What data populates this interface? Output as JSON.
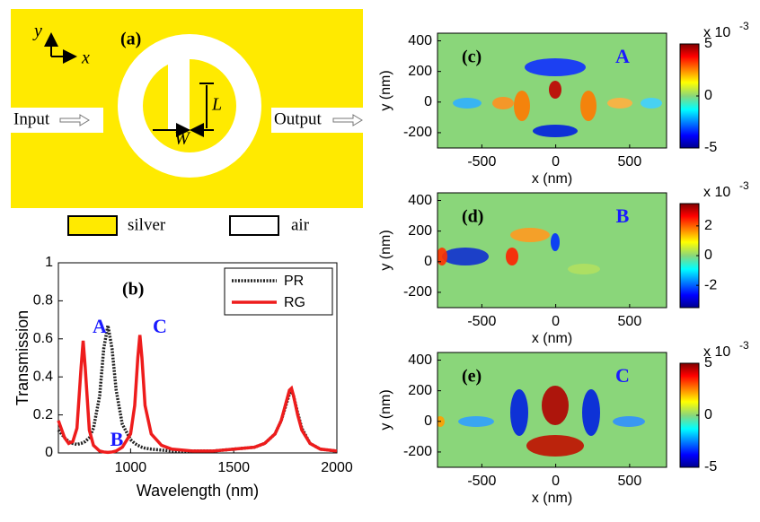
{
  "diagram": {
    "label": "(a)",
    "axis_y": "y",
    "axis_x": "x",
    "input": "Input",
    "output": "Output",
    "L": "L",
    "W": "W",
    "legend": [
      "silver",
      "air"
    ]
  },
  "chart_data": [
    {
      "type": "line",
      "panel": "(b)",
      "xlabel": "Wavelength (nm)",
      "ylabel": "Transmission",
      "annotations": [
        "A",
        "B",
        "C"
      ],
      "xlim": [
        650,
        2000
      ],
      "xticks": [
        1000,
        1500,
        2000
      ],
      "ylim": [
        0,
        1
      ],
      "yticks": [
        0,
        0.2,
        0.4,
        0.6,
        0.8,
        1
      ],
      "legend": "upper right",
      "x": [
        650,
        680,
        700,
        720,
        740,
        760,
        770,
        780,
        800,
        820,
        850,
        870,
        890,
        910,
        930,
        960,
        1000,
        1020,
        1035,
        1045,
        1055,
        1070,
        1100,
        1150,
        1200,
        1300,
        1400,
        1500,
        1600,
        1650,
        1700,
        1730,
        1750,
        1770,
        1780,
        1790,
        1810,
        1830,
        1870,
        1920,
        2000
      ],
      "series": [
        {
          "name": "PR",
          "color": "#222222",
          "style": "dotted",
          "values": [
            0.12,
            0.08,
            0.06,
            0.05,
            0.045,
            0.05,
            0.055,
            0.06,
            0.08,
            0.13,
            0.3,
            0.55,
            0.67,
            0.55,
            0.33,
            0.15,
            0.07,
            0.05,
            0.04,
            0.035,
            0.03,
            0.025,
            0.02,
            0.015,
            0.01,
            0.01,
            0.01,
            0.02,
            0.03,
            0.05,
            0.1,
            0.17,
            0.24,
            0.31,
            0.33,
            0.3,
            0.21,
            0.13,
            0.05,
            0.02,
            0.01
          ]
        },
        {
          "name": "RG",
          "color": "#ee1c1c",
          "style": "solid",
          "values": [
            0.17,
            0.08,
            0.05,
            0.06,
            0.13,
            0.45,
            0.59,
            0.45,
            0.12,
            0.04,
            0.01,
            0.005,
            0.003,
            0.005,
            0.01,
            0.03,
            0.1,
            0.25,
            0.5,
            0.62,
            0.5,
            0.25,
            0.1,
            0.04,
            0.02,
            0.01,
            0.01,
            0.02,
            0.03,
            0.05,
            0.1,
            0.17,
            0.25,
            0.33,
            0.34,
            0.3,
            0.2,
            0.12,
            0.05,
            0.02,
            0.01
          ]
        }
      ]
    },
    {
      "type": "heatmap",
      "panel": "(c)",
      "label": "A",
      "xlabel": "x (nm)",
      "ylabel": "y (nm)",
      "xlim": [
        -800,
        750
      ],
      "xticks": [
        -500,
        0,
        500
      ],
      "ylim": [
        -300,
        450
      ],
      "yticks": [
        -200,
        0,
        200,
        400
      ],
      "clim": [
        -5,
        5
      ],
      "cticks": [
        -5,
        0,
        5
      ],
      "colorbar_scale": "x 10",
      "colorbar_exponent": "-3"
    },
    {
      "type": "heatmap",
      "panel": "(d)",
      "label": "B",
      "xlabel": "x (nm)",
      "ylabel": "y (nm)",
      "xlim": [
        -800,
        750
      ],
      "xticks": [
        -500,
        0,
        500
      ],
      "ylim": [
        -300,
        450
      ],
      "yticks": [
        -200,
        0,
        200,
        400
      ],
      "clim": [
        -3.5,
        3.5
      ],
      "cticks": [
        -2,
        0,
        2
      ],
      "colorbar_scale": "x 10",
      "colorbar_exponent": "-3"
    },
    {
      "type": "heatmap",
      "panel": "(e)",
      "label": "C",
      "xlabel": "x (nm)",
      "ylabel": "y (nm)",
      "xlim": [
        -800,
        750
      ],
      "xticks": [
        -500,
        0,
        500
      ],
      "ylim": [
        -300,
        450
      ],
      "yticks": [
        -200,
        0,
        200,
        400
      ],
      "clim": [
        -5,
        5
      ],
      "cticks": [
        -5,
        0,
        5
      ],
      "colorbar_scale": "x 10",
      "colorbar_exponent": "-3"
    }
  ]
}
